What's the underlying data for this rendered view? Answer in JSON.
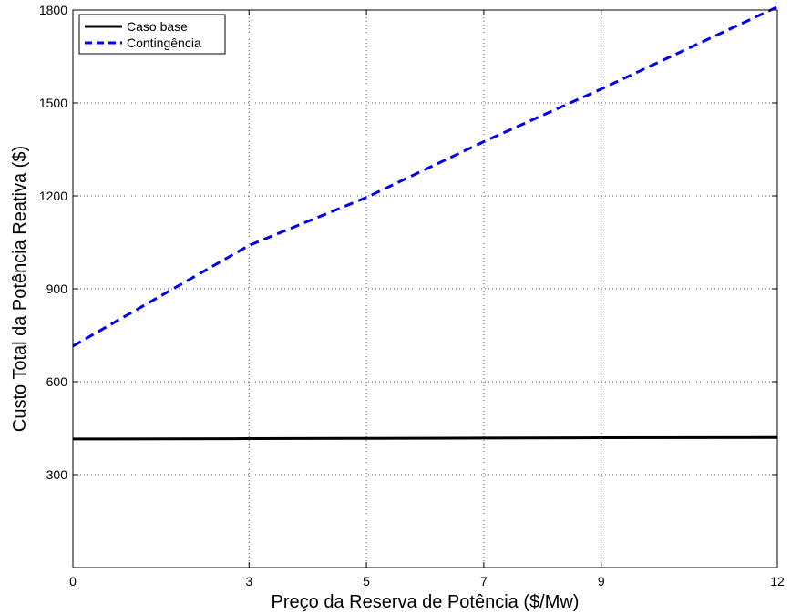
{
  "chart_data": {
    "type": "line",
    "xlabel": "Preço da Reserva de Potência ($/Mw)",
    "ylabel": "Custo Total da Potência Reativa ($)",
    "xlim": [
      0,
      12
    ],
    "ylim": [
      0,
      1800
    ],
    "xticks": [
      0,
      3,
      5,
      7,
      9,
      12
    ],
    "yticks": [
      300,
      600,
      900,
      1200,
      1500,
      1800
    ],
    "grid": true,
    "legend_position": "top-left",
    "series": [
      {
        "name": "Caso base",
        "color": "#000000",
        "style": "solid",
        "x": [
          0,
          3,
          5,
          7,
          9,
          12
        ],
        "y": [
          415,
          416,
          417,
          418,
          419,
          420
        ]
      },
      {
        "name": "Contingência",
        "color": "#0000ee",
        "style": "dashed",
        "x": [
          0,
          3,
          5,
          7,
          9,
          12
        ],
        "y": [
          715,
          1040,
          1195,
          1375,
          1545,
          1810
        ]
      }
    ]
  }
}
